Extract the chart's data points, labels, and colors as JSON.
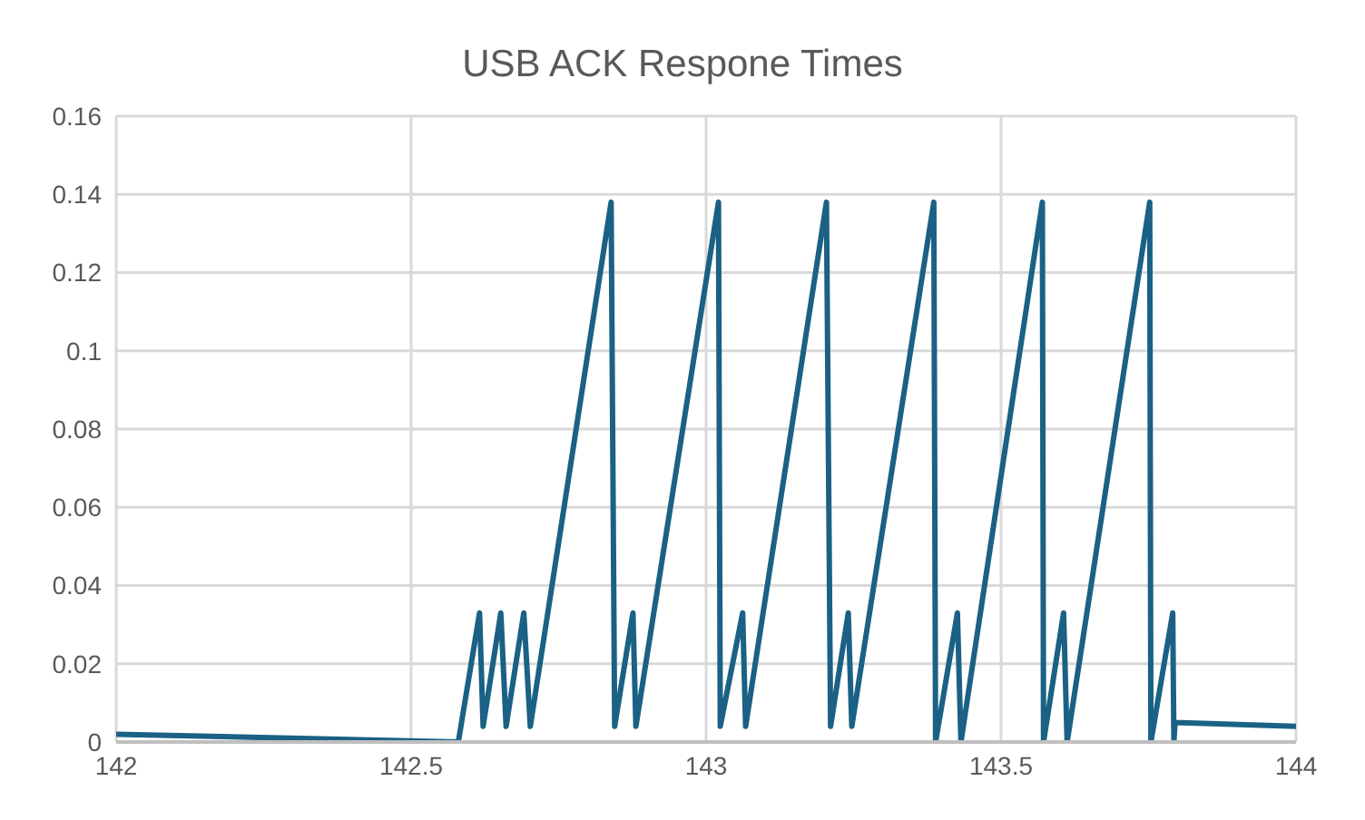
{
  "chart_data": {
    "type": "line",
    "title": "USB ACK Respone Times",
    "x": [
      142,
      142.58,
      142.616,
      142.622,
      142.652,
      142.661,
      142.691,
      142.702,
      142.839,
      142.845,
      142.876,
      142.881,
      143.021,
      143.024,
      143.062,
      143.067,
      143.204,
      143.211,
      143.241,
      143.247,
      143.386,
      143.389,
      143.426,
      143.432,
      143.57,
      143.572,
      143.606,
      143.612,
      143.752,
      143.754,
      143.791,
      143.793,
      143.795,
      144
    ],
    "series": [
      {
        "color": "#1a6185",
        "values": [
          0.002,
          0,
          0.033,
          0.004,
          0.033,
          0.004,
          0.033,
          0.004,
          0.138,
          0.004,
          0.033,
          0.004,
          0.138,
          0.004,
          0.033,
          0.004,
          0.138,
          0.004,
          0.033,
          0.004,
          0.138,
          0,
          0.033,
          0,
          0.138,
          0,
          0.033,
          0,
          0.138,
          0,
          0.033,
          0,
          0.005,
          0.004
        ]
      }
    ],
    "xlim": [
      142,
      144
    ],
    "xticks": [
      142,
      142.5,
      143,
      143.5,
      144
    ],
    "ylim": [
      0,
      0.16
    ],
    "yticks": [
      0,
      0.02,
      0.04,
      0.06,
      0.08,
      0.1,
      0.12,
      0.14,
      0.16
    ],
    "grid": true,
    "legend": false,
    "marker": "none",
    "line_style": "solid"
  }
}
